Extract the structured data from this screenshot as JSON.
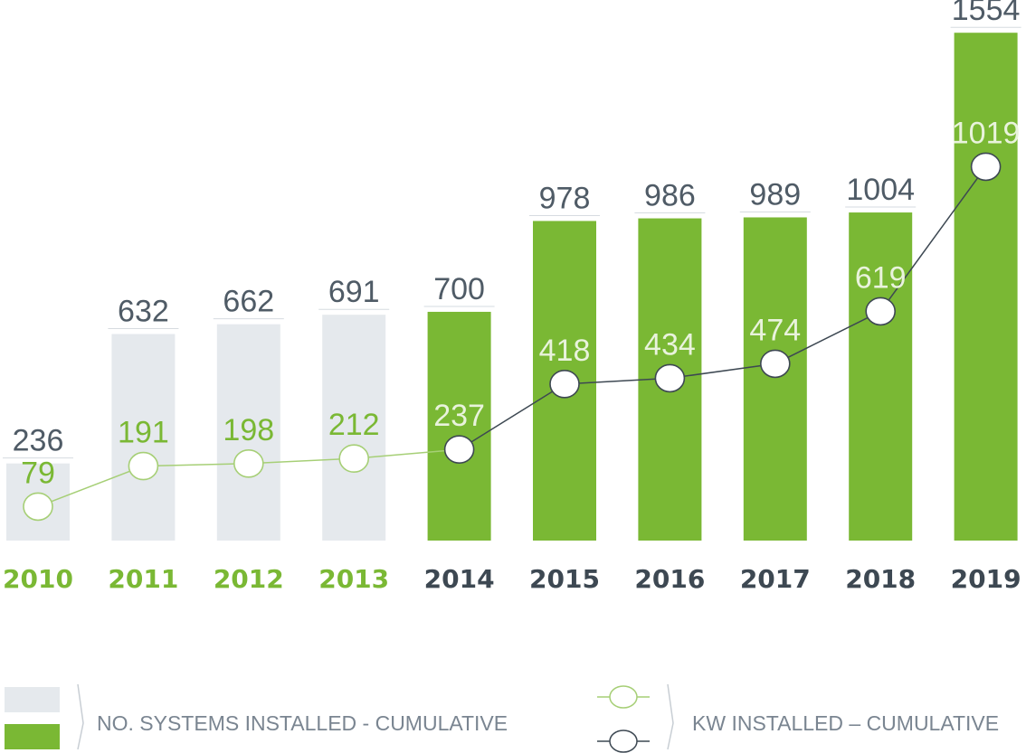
{
  "colors": {
    "bar_early": "#e5e9ed",
    "bar_late": "#7ab834",
    "year_early": "#7ab834",
    "year_late": "#3d4852",
    "value_text": "#4f5b66",
    "line_early": "#a6cf76",
    "line_late": "#3d4852",
    "point_label_early": "#7ab834",
    "point_label_late": "#e9f3dc"
  },
  "chart_data": {
    "type": "bar",
    "categories": [
      "2010",
      "2011",
      "2012",
      "2013",
      "2014",
      "2015",
      "2016",
      "2017",
      "2018",
      "2019"
    ],
    "series": [
      {
        "name": "NO. SYSTEMS INSTALLED - CUMULATIVE",
        "type": "bar",
        "values": [
          236,
          632,
          662,
          691,
          700,
          978,
          986,
          989,
          1004,
          1554
        ]
      },
      {
        "name": "KW INSTALLED – CUMULATIVE",
        "type": "line",
        "values": [
          79,
          191,
          198,
          212,
          237,
          418,
          434,
          474,
          619,
          1019
        ]
      }
    ],
    "highlight_from_index": 4,
    "legend_position": "bottom",
    "grid": false
  },
  "legend": {
    "systems_label": "NO. SYSTEMS INSTALLED - CUMULATIVE",
    "kw_label": "KW INSTALLED – CUMULATIVE"
  }
}
